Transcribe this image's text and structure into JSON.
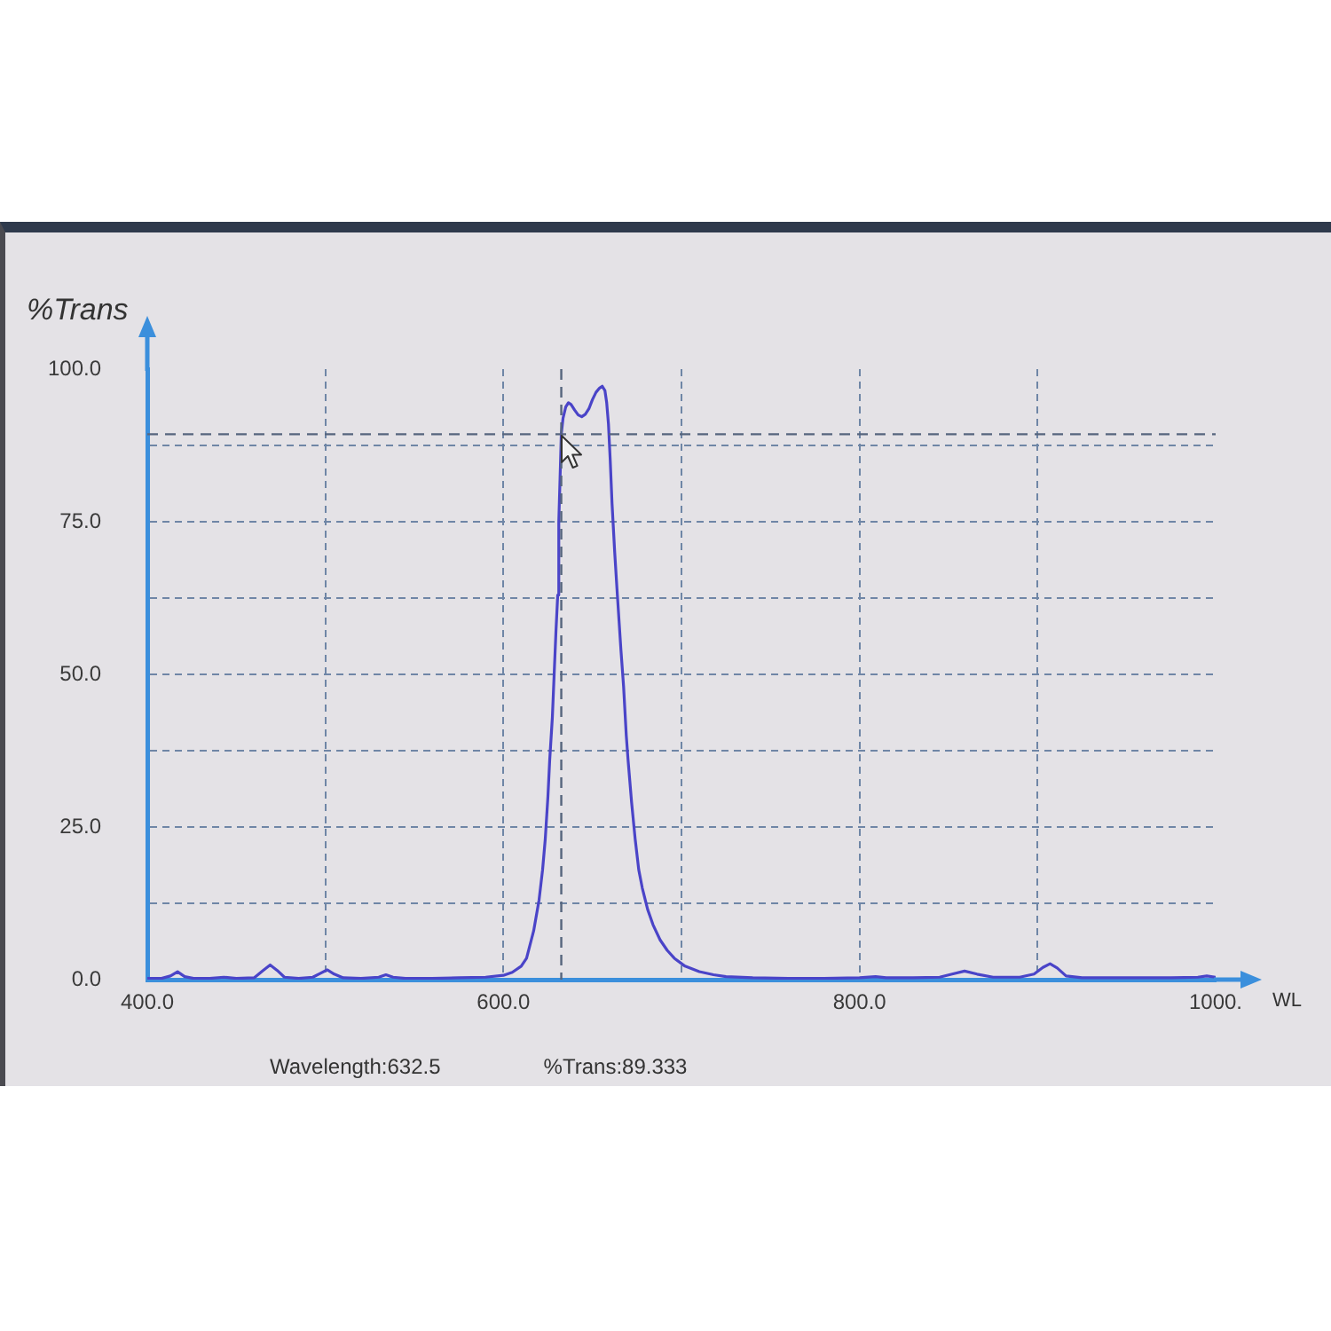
{
  "chart_data": {
    "type": "line",
    "xlabel": "WL",
    "ylabel": "%Trans",
    "annotations": [
      "Wavelength:632.5",
      "%Trans:89.333"
    ],
    "xlim": [
      400,
      1000
    ],
    "ylim": [
      0,
      100
    ],
    "xticks": [
      {
        "value": 400,
        "label": "400.0"
      },
      {
        "value": 500,
        "label": null
      },
      {
        "value": 600,
        "label": "600.0"
      },
      {
        "value": 700,
        "label": null
      },
      {
        "value": 800,
        "label": "800.0"
      },
      {
        "value": 900,
        "label": null
      },
      {
        "value": 1000,
        "label": "1000."
      }
    ],
    "yticks": [
      {
        "value": 0,
        "label": "0.0"
      },
      {
        "value": 12.5,
        "label": null
      },
      {
        "value": 25,
        "label": "25.0"
      },
      {
        "value": 37.5,
        "label": null
      },
      {
        "value": 50,
        "label": "50.0"
      },
      {
        "value": 62.5,
        "label": null
      },
      {
        "value": 75,
        "label": "75.0"
      },
      {
        "value": 87.5,
        "label": null
      },
      {
        "value": 100,
        "label": "100.0"
      }
    ],
    "grid": true,
    "line_style": "solid",
    "ref_lines": [
      {
        "axis": "x",
        "value": 632.5,
        "color": "#56657e"
      },
      {
        "axis": "y",
        "value": 89.333,
        "color": "#56657e"
      }
    ],
    "series": [
      {
        "color": "#4a44c8",
        "x": [
          400,
          408,
          413,
          417,
          421,
          426,
          435,
          443,
          450,
          460,
          465,
          469,
          473,
          477,
          485,
          493,
          497,
          501,
          505,
          510,
          520,
          530,
          534,
          538,
          545,
          560,
          575,
          590,
          600,
          605,
          610,
          613,
          617,
          620,
          622,
          623.5,
          625,
          626,
          627.5,
          628.5,
          629.5,
          630.5,
          631.1,
          632,
          632.5,
          633.5,
          635,
          636.5,
          638,
          640,
          642,
          644,
          646,
          648,
          650,
          652,
          654,
          655.5,
          657,
          658,
          659,
          660,
          661,
          662.5,
          664,
          666,
          667.5,
          669,
          670,
          672,
          674,
          676,
          678,
          681,
          684,
          688,
          692,
          696,
          702,
          710,
          718,
          725,
          740,
          760,
          780,
          800,
          809,
          815,
          830,
          845,
          852,
          859,
          866,
          875,
          890,
          898,
          903,
          907,
          911,
          916,
          925,
          950,
          975,
          990,
          995,
          1000
        ],
        "values": [
          0.2,
          0.2,
          0.6,
          1.3,
          0.5,
          0.2,
          0.2,
          0.4,
          0.2,
          0.3,
          1.5,
          2.4,
          1.5,
          0.4,
          0.2,
          0.4,
          1.0,
          1.6,
          0.9,
          0.3,
          0.2,
          0.4,
          0.8,
          0.4,
          0.2,
          0.2,
          0.3,
          0.4,
          0.7,
          1.2,
          2.2,
          3.5,
          8,
          13,
          18,
          23,
          30,
          36,
          43,
          50,
          57,
          63,
          75,
          84,
          89.3,
          92,
          93.8,
          94.5,
          94.2,
          93.3,
          92.5,
          92.2,
          92.6,
          93.5,
          95,
          96.2,
          96.9,
          97.2,
          96.5,
          94.5,
          91,
          85,
          78,
          70,
          63,
          54,
          48,
          40,
          36,
          29,
          23,
          18,
          15,
          11.5,
          9,
          6.5,
          4.8,
          3.5,
          2.2,
          1.3,
          0.8,
          0.5,
          0.3,
          0.2,
          0.2,
          0.3,
          0.5,
          0.3,
          0.3,
          0.4,
          0.9,
          1.4,
          0.9,
          0.4,
          0.4,
          0.9,
          2.0,
          2.6,
          1.9,
          0.6,
          0.3,
          0.3,
          0.3,
          0.4,
          0.6,
          0.4
        ]
      }
    ]
  }
}
